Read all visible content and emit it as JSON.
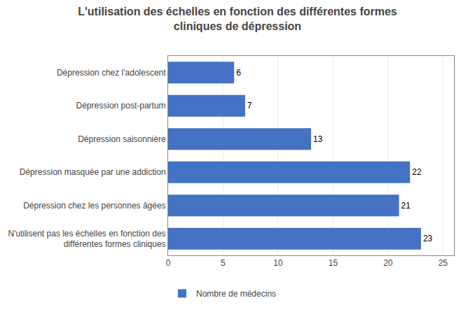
{
  "chart_data": {
    "type": "bar",
    "orientation": "horizontal",
    "title": "L'utilisation des échelles en fonction des différentes formes\ncliniques de dépression",
    "categories": [
      "N'utilisent pas les échelles en fonction des\ndifférentes formes cliniques",
      "Dépression chez les personnes âgées",
      "Dépression masquée par une addiction",
      "Dépression saisonnière",
      "Dépression post-partum",
      "Dépression chez l'adolescent"
    ],
    "series": [
      {
        "name": "Nombre de médecins",
        "color": "#4472C4",
        "values": [
          23,
          21,
          22,
          13,
          7,
          6
        ]
      }
    ],
    "xlim": [
      0,
      26
    ],
    "xticks": [
      0,
      5,
      10,
      15,
      20,
      25
    ],
    "grid": true,
    "data_labels": true,
    "legend": "bottom left"
  }
}
